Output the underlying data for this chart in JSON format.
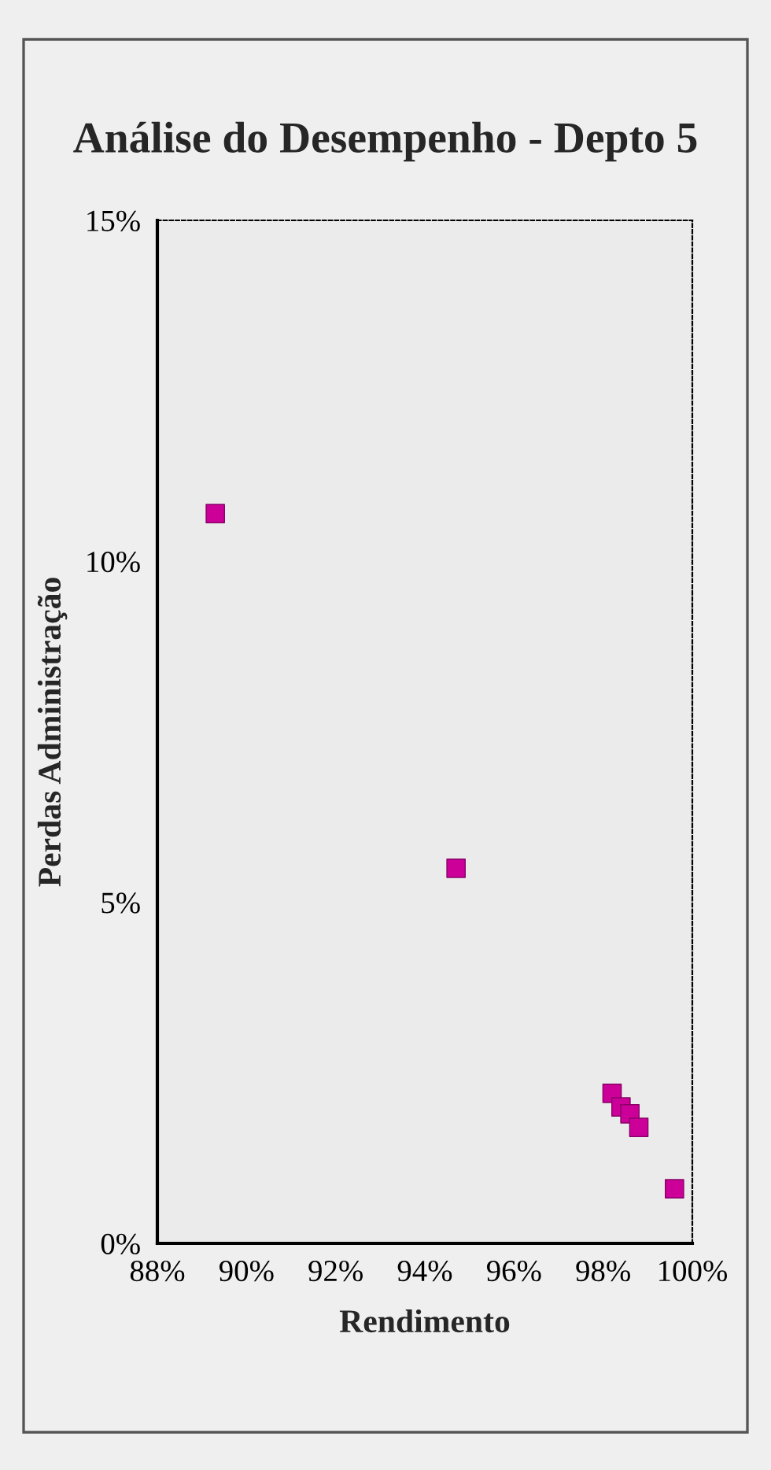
{
  "chart_data": {
    "type": "scatter",
    "title": "Análise do Desempenho - Depto 5",
    "xlabel": "Rendimento",
    "ylabel": "Perdas Administração",
    "x": [
      89.3,
      94.7,
      98.2,
      98.4,
      98.6,
      98.8,
      99.6
    ],
    "series": [
      {
        "color": "#cc0099",
        "values": [
          10.7,
          5.5,
          2.2,
          2.0,
          1.9,
          1.7,
          0.8
        ]
      }
    ],
    "marker": "square",
    "grid": false,
    "legend": false,
    "xlim": [
      88,
      100
    ],
    "xticks": [
      {
        "value": 88,
        "label": "88%"
      },
      {
        "value": 90,
        "label": "90%"
      },
      {
        "value": 92,
        "label": "92%"
      },
      {
        "value": 94,
        "label": "94%"
      },
      {
        "value": 96,
        "label": "96%"
      },
      {
        "value": 98,
        "label": "98%"
      },
      {
        "value": 100,
        "label": "100%"
      }
    ],
    "ylim": [
      0,
      15
    ],
    "yticks": [
      {
        "value": 0,
        "label": "0%"
      },
      {
        "value": 5,
        "label": "5%"
      },
      {
        "value": 10,
        "label": "10%"
      },
      {
        "value": 15,
        "label": "15%"
      }
    ]
  }
}
